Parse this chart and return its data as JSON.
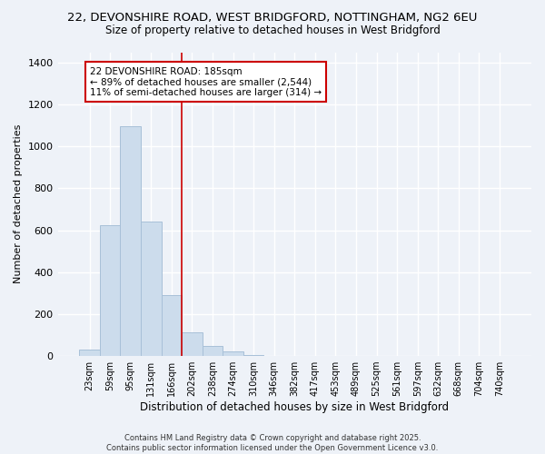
{
  "title_line1": "22, DEVONSHIRE ROAD, WEST BRIDGFORD, NOTTINGHAM, NG2 6EU",
  "title_line2": "Size of property relative to detached houses in West Bridgford",
  "xlabel": "Distribution of detached houses by size in West Bridgford",
  "ylabel": "Number of detached properties",
  "bar_labels": [
    "23sqm",
    "59sqm",
    "95sqm",
    "131sqm",
    "166sqm",
    "202sqm",
    "238sqm",
    "274sqm",
    "310sqm",
    "346sqm",
    "382sqm",
    "417sqm",
    "453sqm",
    "489sqm",
    "525sqm",
    "561sqm",
    "597sqm",
    "632sqm",
    "668sqm",
    "704sqm",
    "740sqm"
  ],
  "bar_values": [
    30,
    625,
    1095,
    640,
    290,
    115,
    50,
    20,
    5,
    2,
    1,
    0,
    0,
    0,
    0,
    0,
    0,
    0,
    0,
    0,
    0
  ],
  "bar_color": "#ccdcec",
  "bar_edge_color": "#a8c0d8",
  "bg_color": "#eef2f8",
  "grid_color": "#ffffff",
  "annotation_line1": "22 DEVONSHIRE ROAD: 185sqm",
  "annotation_line2": "← 89% of detached houses are smaller (2,544)",
  "annotation_line3": "11% of semi-detached houses are larger (314) →",
  "annotation_box_color": "#ffffff",
  "annotation_box_edge": "#cc0000",
  "vline_x": 4.5,
  "vline_color": "#cc0000",
  "ylim": [
    0,
    1450
  ],
  "yticks": [
    0,
    200,
    400,
    600,
    800,
    1000,
    1200,
    1400
  ],
  "footer_line1": "Contains HM Land Registry data © Crown copyright and database right 2025.",
  "footer_line2": "Contains public sector information licensed under the Open Government Licence v3.0."
}
